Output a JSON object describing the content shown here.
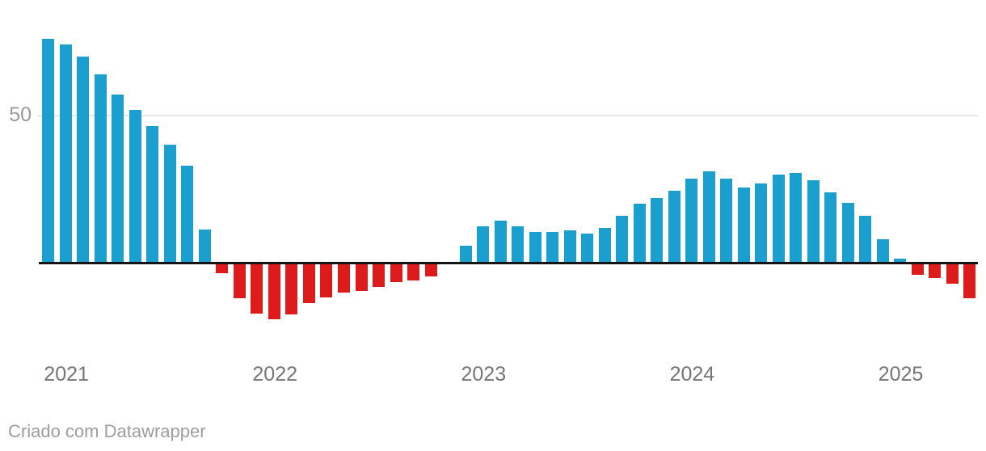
{
  "chart_data": {
    "type": "bar",
    "x": [
      "2021-01",
      "2021-02",
      "2021-03",
      "2021-04",
      "2021-05",
      "2021-06",
      "2021-07",
      "2021-08",
      "2021-09",
      "2021-10",
      "2021-11",
      "2021-12",
      "2022-01",
      "2022-02",
      "2022-03",
      "2022-04",
      "2022-05",
      "2022-06",
      "2022-07",
      "2022-08",
      "2022-09",
      "2022-10",
      "2022-11",
      "2022-12",
      "2023-01",
      "2023-02",
      "2023-03",
      "2023-04",
      "2023-05",
      "2023-06",
      "2023-07",
      "2023-08",
      "2023-09",
      "2023-10",
      "2023-11",
      "2023-12",
      "2024-01",
      "2024-02",
      "2024-03",
      "2024-04",
      "2024-05",
      "2024-06",
      "2024-07",
      "2024-08",
      "2024-09",
      "2024-10",
      "2024-11",
      "2024-12",
      "2025-01",
      "2025-02",
      "2025-03",
      "2025-04",
      "2025-05",
      "2025-06"
    ],
    "values": [
      76,
      74,
      70,
      64,
      57,
      52,
      46.5,
      40,
      33,
      11.5,
      -3.5,
      -12,
      -17,
      -19,
      -17.5,
      -13.5,
      -11.5,
      -10,
      -9.5,
      -8,
      -6.5,
      -6,
      -4.5,
      0,
      6,
      12.5,
      14.5,
      12.5,
      10.5,
      10.5,
      11,
      10,
      12,
      16,
      20,
      22,
      24.5,
      28.5,
      31,
      28.5,
      25.5,
      27,
      30,
      30.5,
      28,
      24,
      20.5,
      16,
      8,
      1.5,
      -4,
      -5,
      -7,
      -12
    ],
    "title": "",
    "xlabel": "",
    "ylabel": "",
    "ylim": [
      -22,
      80
    ],
    "yticks": [
      50
    ],
    "ytick_labels": [
      "50"
    ],
    "xtick_labels": [
      "2021",
      "2022",
      "2023",
      "2024",
      "2025"
    ],
    "xtick_months": [
      "2021-01",
      "2022-01",
      "2023-01",
      "2024-01",
      "2025-01"
    ],
    "grid": "horizontal gridline at y=50; bold black zero baseline",
    "legend": "none",
    "positive_color": "#1a9fce",
    "negative_color": "#dd1b1b"
  },
  "axis": {
    "ytick_label": "50"
  },
  "footer": {
    "credit": "Criado com Datawrapper"
  },
  "colors": {
    "positive_bar": "#1a9fce",
    "negative_bar": "#dd1b1b",
    "zero_axis": "#141414",
    "gridline": "#e7e7e7",
    "year_label": "#757575",
    "ytick_label": "#9b9b9b",
    "credit_text": "#9d9d9d"
  }
}
